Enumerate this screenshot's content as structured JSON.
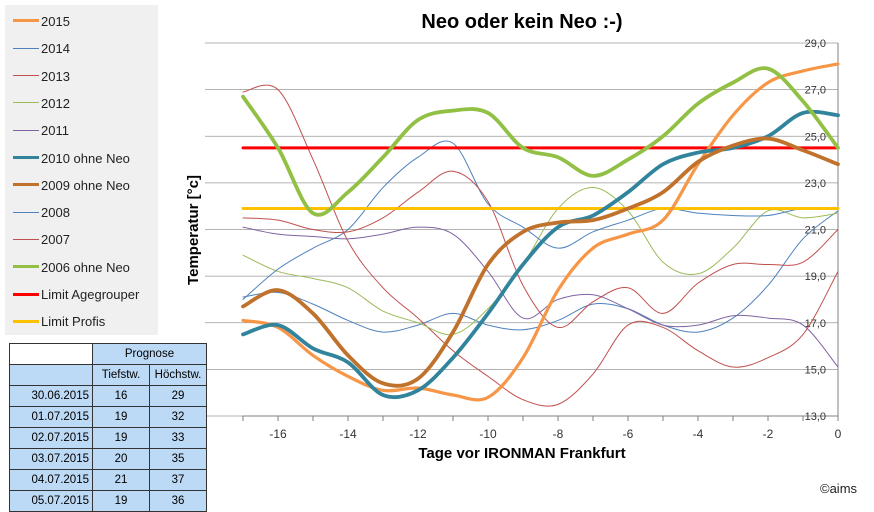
{
  "chart_data": {
    "type": "line",
    "title": "Neo oder kein Neo :-)",
    "xlabel": "Tage vor IRONMAN Frankfurt",
    "ylabel": "Temperatur  [°c]",
    "xlim": [
      -17,
      0
    ],
    "ylim": [
      13,
      29
    ],
    "xticks": [
      "-16",
      "-14",
      "-12",
      "-10",
      "-8",
      "-6",
      "-4",
      "-2",
      "0"
    ],
    "yticks": [
      "13,0",
      "15,0",
      "17,0",
      "19,0",
      "21,0",
      "23,0",
      "25,0",
      "27,0",
      "29,0"
    ],
    "grid": "horizontal",
    "legend_position": "left",
    "series": [
      {
        "name": "2015",
        "color": "#f79646",
        "width": 3.2,
        "x": [
          -17,
          -16,
          -15,
          -14,
          -13,
          -12,
          -11,
          -10,
          -9,
          -8,
          -7,
          -6,
          -5,
          -4,
          -3,
          -2,
          -1,
          0
        ],
        "y": [
          17.1,
          16.8,
          15.6,
          14.7,
          14.1,
          14.2,
          13.9,
          13.8,
          15.5,
          18.4,
          20.2,
          20.8,
          21.4,
          23.8,
          25.9,
          27.3,
          27.8,
          28.1
        ]
      },
      {
        "name": "2014",
        "color": "#4f81bd",
        "width": 1,
        "x": [
          -17,
          -16,
          -15,
          -14,
          -13,
          -12,
          -11,
          -10,
          -9,
          -8,
          -7,
          -6,
          -5,
          -4,
          -3,
          -2,
          -1,
          0
        ],
        "y": [
          18.1,
          18.3,
          17.8,
          17.1,
          16.6,
          16.9,
          17.4,
          16.9,
          16.7,
          17.1,
          17.8,
          17.6,
          16.9,
          16.6,
          17.2,
          18.6,
          20.6,
          21.8
        ]
      },
      {
        "name": "2013",
        "color": "#c0504d",
        "width": 1,
        "x": [
          -17,
          -16,
          -15,
          -14,
          -13,
          -12,
          -11,
          -10,
          -9,
          -8,
          -7,
          -6,
          -5,
          -4,
          -3,
          -2,
          -1,
          0
        ],
        "y": [
          26.9,
          27.0,
          24.0,
          20.5,
          18.5,
          17.2,
          15.8,
          14.7,
          13.7,
          13.5,
          14.8,
          16.9,
          16.8,
          15.8,
          15.1,
          15.5,
          16.5,
          19.2
        ]
      },
      {
        "name": "2012",
        "color": "#9bbb59",
        "width": 1,
        "x": [
          -17,
          -16,
          -15,
          -14,
          -13,
          -12,
          -11,
          -10,
          -9,
          -8,
          -7,
          -6,
          -5,
          -4,
          -3,
          -2,
          -1,
          0
        ],
        "y": [
          19.9,
          19.2,
          18.9,
          18.5,
          17.5,
          17.0,
          16.5,
          17.6,
          19.5,
          21.9,
          22.8,
          21.8,
          19.6,
          19.1,
          20.2,
          21.8,
          21.5,
          21.7
        ]
      },
      {
        "name": "2011",
        "color": "#8064a2",
        "width": 1,
        "x": [
          -17,
          -16,
          -15,
          -14,
          -13,
          -12,
          -11,
          -10,
          -9,
          -8,
          -7,
          -6,
          -5,
          -4,
          -3,
          -2,
          -1,
          0
        ],
        "y": [
          21.1,
          20.8,
          20.7,
          20.6,
          20.8,
          21.1,
          20.8,
          19.2,
          17.2,
          18.0,
          18.2,
          17.6,
          16.9,
          16.9,
          17.3,
          17.2,
          16.9,
          15.1
        ]
      },
      {
        "name": "2010 ohne Neo",
        "color": "#31849b",
        "width": 3.8,
        "x": [
          -17,
          -16,
          -15,
          -14,
          -13,
          -12,
          -11,
          -10,
          -9,
          -8,
          -7,
          -6,
          -5,
          -4,
          -3,
          -2,
          -1,
          0
        ],
        "y": [
          16.5,
          16.9,
          15.9,
          15.3,
          13.9,
          14.1,
          15.5,
          17.4,
          19.5,
          21.1,
          21.6,
          22.6,
          23.8,
          24.3,
          24.5,
          25.0,
          26.0,
          25.9
        ]
      },
      {
        "name": "2009 ohne Neo",
        "color": "#c0504d",
        "width": 3.8,
        "color_override": "#c0712c",
        "x": [
          -17,
          -16,
          -15,
          -14,
          -13,
          -12,
          -11,
          -10,
          -9,
          -8,
          -7,
          -6,
          -5,
          -4,
          -3,
          -2,
          -1,
          0
        ],
        "y": [
          17.7,
          18.4,
          17.4,
          15.6,
          14.4,
          14.6,
          16.6,
          19.5,
          20.9,
          21.3,
          21.4,
          21.9,
          22.6,
          23.9,
          24.6,
          24.9,
          24.4,
          23.8
        ]
      },
      {
        "name": "2008",
        "color": "#4f81bd",
        "width": 1,
        "x": [
          -17,
          -16,
          -15,
          -14,
          -13,
          -12,
          -11,
          -10,
          -9,
          -8,
          -7,
          -6,
          -5,
          -4,
          -3,
          -2,
          -1,
          0
        ],
        "y": [
          18.0,
          19.3,
          20.2,
          21.0,
          22.8,
          24.1,
          24.7,
          22.1,
          21.1,
          20.2,
          20.9,
          21.4,
          21.9,
          21.7,
          21.6,
          21.6,
          21.9,
          21.9
        ]
      },
      {
        "name": "2007",
        "color": "#c0504d",
        "width": 1,
        "x": [
          -17,
          -16,
          -15,
          -14,
          -13,
          -12,
          -11,
          -10,
          -9,
          -8,
          -7,
          -6,
          -5,
          -4,
          -3,
          -2,
          -1,
          0
        ],
        "y": [
          21.5,
          21.4,
          21.0,
          20.9,
          21.5,
          22.6,
          23.5,
          22.2,
          18.6,
          16.8,
          17.9,
          18.5,
          17.4,
          18.7,
          19.5,
          19.5,
          19.6,
          21.0
        ]
      },
      {
        "name": "2006 ohne Neo",
        "color": "#92c045",
        "width": 3.8,
        "x": [
          -17,
          -16,
          -15,
          -14,
          -13,
          -12,
          -11,
          -10,
          -9,
          -8,
          -7,
          -6,
          -5,
          -4,
          -3,
          -2,
          -1,
          0
        ],
        "y": [
          26.7,
          24.5,
          21.7,
          22.6,
          24.1,
          25.7,
          26.1,
          26.0,
          24.5,
          24.1,
          23.3,
          24.0,
          25.0,
          26.4,
          27.3,
          27.9,
          26.5,
          24.5
        ]
      },
      {
        "name": "Limit Agegrouper",
        "color": "#ff0000",
        "width": 3,
        "x": [
          -17,
          0
        ],
        "y": [
          24.5,
          24.5
        ]
      },
      {
        "name": "Limit Profis",
        "color": "#ffc000",
        "width": 3,
        "x": [
          -17,
          0
        ],
        "y": [
          21.9,
          21.9
        ]
      }
    ]
  },
  "prognose": {
    "header": "Prognose",
    "col1": "Tiefstw.",
    "col2": "Höchstw.",
    "rows": [
      {
        "date": "30.06.2015",
        "min": "16",
        "max": "29"
      },
      {
        "date": "01.07.2015",
        "min": "19",
        "max": "32"
      },
      {
        "date": "02.07.2015",
        "min": "19",
        "max": "33"
      },
      {
        "date": "03.07.2015",
        "min": "20",
        "max": "35"
      },
      {
        "date": "04.07.2015",
        "min": "21",
        "max": "37"
      },
      {
        "date": "05.07.2015",
        "min": "19",
        "max": "36"
      }
    ]
  },
  "copyright": "©aims"
}
